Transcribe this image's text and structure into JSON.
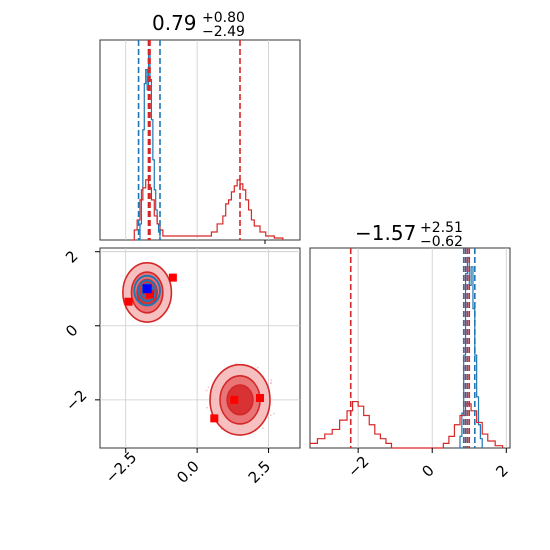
{
  "chart_data": [
    {
      "type": "histogram",
      "panel": "marginal-x1",
      "title": {
        "base": "0.79",
        "sup": "+0.80",
        "sub": "−2.49"
      },
      "xlim": [
        -3.4,
        3.6
      ],
      "grid": true,
      "series": [
        {
          "color": "#1f77b4",
          "quantiles": [
            -2.05,
            -1.7,
            -1.3
          ],
          "bins": [
            [
              -2.1,
              0
            ],
            [
              -2.0,
              0.08
            ],
            [
              -1.95,
              0.25
            ],
            [
              -1.9,
              0.55
            ],
            [
              -1.85,
              0.78
            ],
            [
              -1.8,
              0.85
            ],
            [
              -1.75,
              0.75
            ],
            [
              -1.7,
              0.95
            ],
            [
              -1.65,
              0.8
            ],
            [
              -1.6,
              0.6
            ],
            [
              -1.55,
              0.4
            ],
            [
              -1.5,
              0.25
            ],
            [
              -1.45,
              0.15
            ],
            [
              -1.4,
              0.08
            ],
            [
              -1.35,
              0.04
            ],
            [
              -1.3,
              0
            ]
          ]
        },
        {
          "color": "#d62728",
          "quantiles": [
            -1.7,
            -1.65,
            1.5
          ],
          "bins": [
            [
              -2.3,
              0
            ],
            [
              -2.2,
              0.05
            ],
            [
              -2.1,
              0.1
            ],
            [
              -2.0,
              0.2
            ],
            [
              -1.9,
              0.26
            ],
            [
              -1.8,
              0.3
            ],
            [
              -1.7,
              0.26
            ],
            [
              -1.6,
              0.2
            ],
            [
              -1.5,
              0.12
            ],
            [
              -1.4,
              0.08
            ],
            [
              -1.3,
              0.05
            ],
            [
              -1.2,
              0.02
            ],
            [
              0.3,
              0.02
            ],
            [
              0.5,
              0.04
            ],
            [
              0.7,
              0.08
            ],
            [
              0.9,
              0.12
            ],
            [
              1.0,
              0.18
            ],
            [
              1.1,
              0.2
            ],
            [
              1.2,
              0.24
            ],
            [
              1.3,
              0.27
            ],
            [
              1.4,
              0.3
            ],
            [
              1.5,
              0.28
            ],
            [
              1.6,
              0.25
            ],
            [
              1.7,
              0.2
            ],
            [
              1.8,
              0.15
            ],
            [
              1.9,
              0.1
            ],
            [
              2.0,
              0.07
            ],
            [
              2.2,
              0.04
            ],
            [
              2.4,
              0.02
            ],
            [
              2.7,
              0.01
            ],
            [
              3.0,
              0
            ]
          ]
        }
      ]
    },
    {
      "type": "histogram",
      "panel": "marginal-x2",
      "title": {
        "base": "−1.57",
        "sup": "+2.51",
        "sub": "−0.62"
      },
      "xlim": [
        -3.3,
        2.1
      ],
      "xticks": [
        "−2",
        "0",
        "2"
      ],
      "grid": true,
      "series": [
        {
          "color": "#1f77b4",
          "quantiles": [
            0.85,
            0.95,
            1.15
          ],
          "bins": [
            [
              0.7,
              0
            ],
            [
              0.75,
              0.05
            ],
            [
              0.8,
              0.15
            ],
            [
              0.85,
              0.4
            ],
            [
              0.9,
              0.75
            ],
            [
              0.95,
              0.82
            ],
            [
              1.0,
              0.7
            ],
            [
              1.05,
              0.78
            ],
            [
              1.1,
              0.6
            ],
            [
              1.15,
              0.4
            ],
            [
              1.2,
              0.22
            ],
            [
              1.25,
              0.1
            ],
            [
              1.3,
              0.04
            ],
            [
              1.35,
              0
            ]
          ]
        },
        {
          "color": "#d62728",
          "quantiles": [
            -2.2,
            0.9,
            1.0
          ],
          "bins": [
            [
              -3.3,
              0.02
            ],
            [
              -3.1,
              0.04
            ],
            [
              -2.9,
              0.06
            ],
            [
              -2.7,
              0.08
            ],
            [
              -2.5,
              0.12
            ],
            [
              -2.3,
              0.16
            ],
            [
              -2.15,
              0.2
            ],
            [
              -2.0,
              0.18
            ],
            [
              -1.85,
              0.14
            ],
            [
              -1.7,
              0.1
            ],
            [
              -1.55,
              0.06
            ],
            [
              -1.4,
              0.04
            ],
            [
              -1.25,
              0.02
            ],
            [
              -1.1,
              0
            ],
            [
              0.1,
              0
            ],
            [
              0.3,
              0.02
            ],
            [
              0.45,
              0.05
            ],
            [
              0.6,
              0.1
            ],
            [
              0.75,
              0.14
            ],
            [
              0.9,
              0.19
            ],
            [
              1.05,
              0.16
            ],
            [
              1.2,
              0.11
            ],
            [
              1.35,
              0.06
            ],
            [
              1.5,
              0.03
            ],
            [
              1.7,
              0.01
            ],
            [
              1.9,
              0
            ]
          ]
        }
      ]
    },
    {
      "type": "scatter",
      "panel": "joint",
      "xlim": [
        -3.4,
        3.6
      ],
      "ylim": [
        -3.3,
        2.1
      ],
      "xticks": [
        "−2.5",
        "0.0",
        "2.5"
      ],
      "yticks": [
        "−2",
        "0",
        "2"
      ],
      "grid": true,
      "red_points": [
        [
          -1.65,
          0.85
        ],
        [
          -0.85,
          1.3
        ],
        [
          -2.4,
          0.65
        ],
        [
          0.6,
          -2.5
        ],
        [
          1.3,
          -2.0
        ],
        [
          2.2,
          -1.95
        ]
      ],
      "blue_points": [
        [
          -1.75,
          1.0
        ]
      ],
      "contours": [
        {
          "color": "#d62728",
          "cx": -1.75,
          "cy": 0.9,
          "rx": [
            0.35,
            0.55,
            0.85
          ],
          "ry": [
            0.35,
            0.55,
            0.8
          ]
        },
        {
          "color": "#d62728",
          "cx": 1.5,
          "cy": -2.0,
          "rx": [
            0.45,
            0.7,
            1.05
          ],
          "ry": [
            0.4,
            0.65,
            0.95
          ]
        },
        {
          "color": "#1f77b4",
          "cx": -1.75,
          "cy": 0.95,
          "rx": [
            0.18,
            0.3,
            0.45
          ],
          "ry": [
            0.18,
            0.28,
            0.4
          ]
        }
      ]
    }
  ]
}
